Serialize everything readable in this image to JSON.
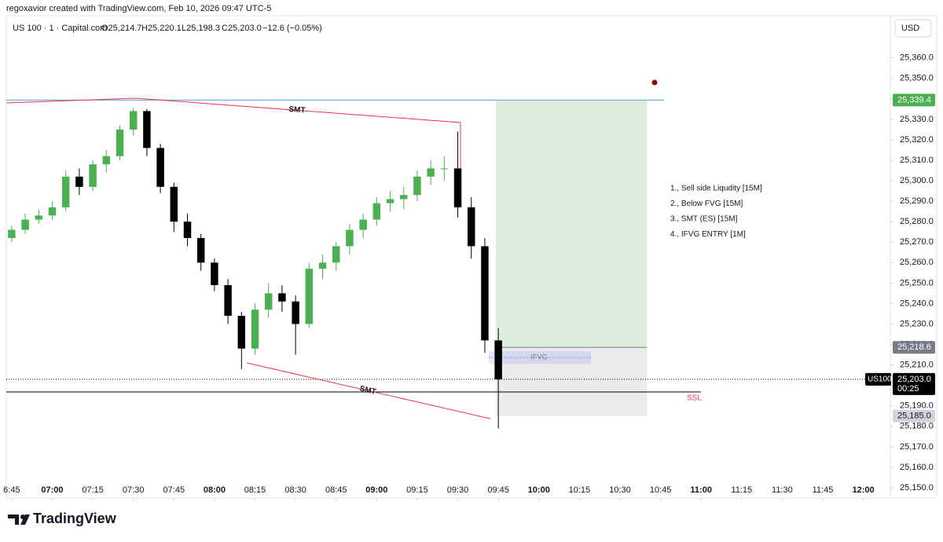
{
  "header": {
    "credit": "regoxavior created with TradingView.com, Feb 10, 2026 09:47 UTC-5",
    "symbol": "US 100 · 1 · Capital.com",
    "ohlc": [
      "O25,214.7",
      "H25,220.1",
      "L25,198.3",
      "C25,203.0",
      "−12.6 (−0.05%)"
    ]
  },
  "footer": {
    "brand": "TradingView"
  },
  "chart_data": {
    "type": "candlestick",
    "currency": "USD",
    "up_color": "#4caf50",
    "down_color": "#000000",
    "x": [
      "06:45",
      "06:50",
      "06:55",
      "07:00",
      "07:05",
      "07:10",
      "07:15",
      "07:20",
      "07:25",
      "07:30",
      "07:35",
      "07:40",
      "07:45",
      "07:50",
      "07:55",
      "08:00",
      "08:05",
      "08:10",
      "08:15",
      "08:20",
      "08:25",
      "08:30",
      "08:35",
      "08:40",
      "08:45",
      "08:50",
      "08:55",
      "09:00",
      "09:05",
      "09:10",
      "09:15",
      "09:20",
      "09:25",
      "09:30",
      "09:35",
      "09:40",
      "09:45"
    ],
    "open": [
      25272,
      25276,
      25281,
      25283,
      25287,
      25302,
      25297,
      25308,
      25312,
      25325,
      25334,
      25316,
      25297,
      25280,
      25272,
      25260,
      25249,
      25234,
      25218,
      25237,
      25245,
      25241,
      25230,
      25257,
      25260,
      25268,
      25276,
      25281,
      25289,
      25291,
      25293,
      25302,
      25306,
      25306,
      25287,
      25268,
      25222
    ],
    "high": [
      25278,
      25284,
      25286,
      25290,
      25305,
      25306,
      25310,
      25315,
      25327,
      25335.5,
      25335,
      25318,
      25299,
      25284,
      25274,
      25262,
      25252,
      25236,
      25240,
      25250,
      25249,
      25244,
      25260,
      25264,
      25270,
      25279,
      25284,
      25292,
      25295,
      25297,
      25305,
      25310,
      25312,
      25324,
      25292,
      25272,
      25228
    ],
    "low": [
      25270,
      25274,
      25279,
      25281,
      25285,
      25293,
      25295,
      25304,
      25310,
      25322,
      25312,
      25294,
      25275,
      25268,
      25256,
      25246,
      25230,
      25208,
      25215,
      25233,
      25236,
      25215,
      25228,
      25252,
      25256,
      25264,
      25272,
      25278,
      25285,
      25286,
      25290,
      25298,
      25300,
      25282,
      25262,
      25216,
      25179
    ],
    "close": [
      25276,
      25281,
      25283,
      25287,
      25302,
      25297,
      25308,
      25312,
      25325,
      25334,
      25316,
      25297,
      25280,
      25272,
      25260,
      25249,
      25234,
      25218,
      25237,
      25245,
      25241,
      25230,
      25257,
      25260,
      25268,
      25276,
      25281,
      25289,
      25291,
      25293,
      25302,
      25306,
      25306,
      25287,
      25268,
      25222,
      25203
    ],
    "xlim": [
      "06:43",
      "12:10"
    ],
    "xticks": [
      "6:45",
      "07:00",
      "07:15",
      "07:30",
      "07:45",
      "08:00",
      "08:15",
      "08:30",
      "08:45",
      "09:00",
      "09:15",
      "09:30",
      "09:45",
      "10:00",
      "10:15",
      "10:30",
      "10:45",
      "11:00",
      "11:15",
      "11:30",
      "11:45",
      "12:00"
    ],
    "ylim": [
      25145,
      25380.6
    ],
    "yticks": [
      {
        "value": 25150,
        "label": "25,150.0"
      },
      {
        "value": 25160,
        "label": "25,160.0"
      },
      {
        "value": 25170,
        "label": "25,170.0"
      },
      {
        "value": 25180,
        "label": "25,180.0"
      },
      {
        "value": 25190,
        "label": "25,190.0"
      },
      {
        "value": 25200,
        "label": "25,200.0"
      },
      {
        "value": 25210,
        "label": "25,210.0"
      },
      {
        "value": 25220,
        "label": "25,220.0"
      },
      {
        "value": 25230,
        "label": "25,230.0"
      },
      {
        "value": 25240,
        "label": "25,240.0"
      },
      {
        "value": 25250,
        "label": "25,250.0"
      },
      {
        "value": 25260,
        "label": "25,260.0"
      },
      {
        "value": 25270,
        "label": "25,270.0"
      },
      {
        "value": 25280,
        "label": "25,280.0"
      },
      {
        "value": 25290,
        "label": "25,290.0"
      },
      {
        "value": 25300,
        "label": "25,300.0"
      },
      {
        "value": 25310,
        "label": "25,310.0"
      },
      {
        "value": 25320,
        "label": "25,320.0"
      },
      {
        "value": 25330,
        "label": "25,330.0"
      },
      {
        "value": 25340,
        "label": "25,340.0"
      },
      {
        "value": 25350,
        "label": "25,350.0"
      },
      {
        "value": 25360,
        "label": "25,360.0"
      }
    ],
    "levels": {
      "target": {
        "value": 25339.4,
        "label": "25,339.4",
        "color": "#4caf50"
      },
      "entry": {
        "value": 25218.6,
        "label": "25,218.6",
        "color": "#787b86"
      },
      "last": {
        "value": 25203.0,
        "label": "25,203.0",
        "symbol": "US100",
        "countdown": "00:25",
        "color": "#000000"
      },
      "stop": {
        "value": 25185.0,
        "label": "25,185.0",
        "color": "#d1d4dc"
      }
    },
    "annotations": {
      "smt_top": "SMT",
      "smt_bottom": "SMT",
      "ifvg": "IFVG",
      "ssl": "SSL"
    },
    "notes": [
      "1., Sell side Liqudity [15M]",
      "2., Below FVG [15M]",
      "3., SMT (ES) [15M]",
      "4., IFVG  ENTRY [1M]"
    ]
  }
}
